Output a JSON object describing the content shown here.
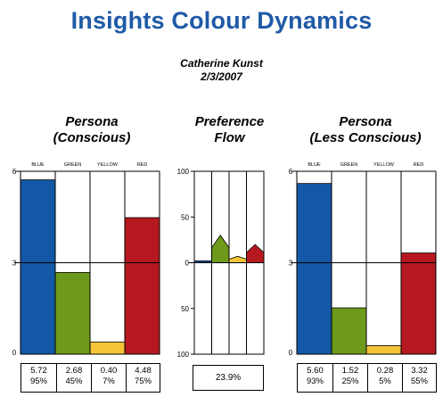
{
  "header": {
    "title": "Insights Colour Dynamics",
    "name": "Catherine Kunst",
    "date": "2/3/2007"
  },
  "panels": {
    "conscious": {
      "title_line1": "Persona",
      "title_line2": "(Conscious)"
    },
    "flow": {
      "title_line1": "Preference",
      "title_line2": "Flow",
      "value": "23.9%"
    },
    "less_conscious": {
      "title_line1": "Persona",
      "title_line2": "(Less Conscious)"
    }
  },
  "colors": {
    "blue": "#1358a6",
    "green": "#6e9a1c",
    "yellow": "#f5c437",
    "red": "#b5191f"
  },
  "chart_data": [
    {
      "type": "bar",
      "title": "Persona (Conscious)",
      "categories": [
        "BLUE",
        "GREEN",
        "YELLOW",
        "RED"
      ],
      "values": [
        5.72,
        2.68,
        0.4,
        4.48
      ],
      "percent_labels": [
        "95%",
        "45%",
        "7%",
        "75%"
      ],
      "value_labels": [
        "5.72",
        "2.68",
        "0.40",
        "4.48"
      ],
      "ylim": [
        0,
        6
      ],
      "yticks": [
        "6",
        "3",
        "0"
      ]
    },
    {
      "type": "area",
      "title": "Preference Flow",
      "categories": [
        "BLUE",
        "GREEN",
        "YELLOW",
        "RED"
      ],
      "values": [
        2,
        30,
        7,
        20
      ],
      "ylim": [
        -100,
        100
      ],
      "yticks": [
        "100",
        "50",
        "0",
        "50",
        "100"
      ],
      "summary": "23.9%"
    },
    {
      "type": "bar",
      "title": "Persona (Less Conscious)",
      "categories": [
        "BLUE",
        "GREEN",
        "YELLOW",
        "RED"
      ],
      "values": [
        5.6,
        1.52,
        0.28,
        3.32
      ],
      "percent_labels": [
        "93%",
        "25%",
        "5%",
        "55%"
      ],
      "value_labels": [
        "5.60",
        "1.52",
        "0.28",
        "3.32"
      ],
      "ylim": [
        0,
        6
      ],
      "yticks": [
        "6",
        "3",
        "0"
      ]
    }
  ]
}
